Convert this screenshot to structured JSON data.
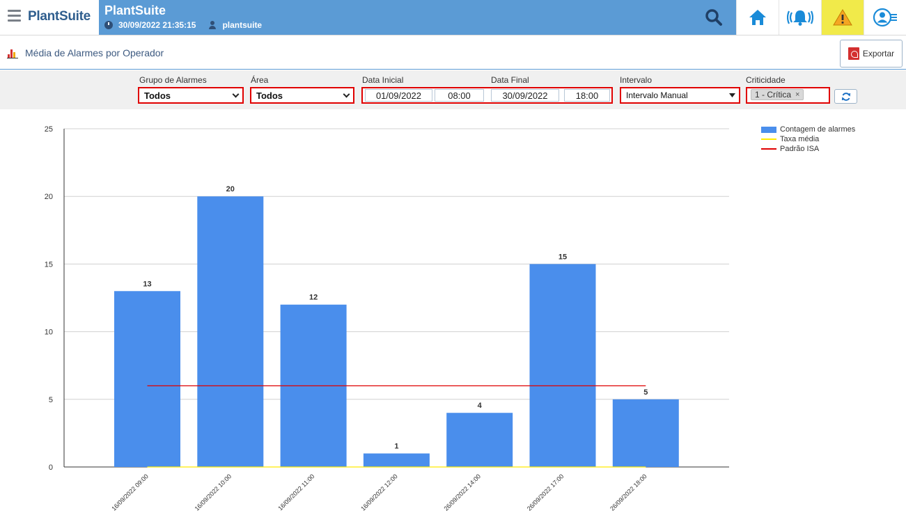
{
  "header": {
    "brand": "PlantSuite",
    "app_title": "PlantSuite",
    "datetime": "30/09/2022 21:35:15",
    "user": "plantsuite"
  },
  "page": {
    "title": "Média de Alarmes por Operador",
    "export_label": "Exportar"
  },
  "filters": {
    "group_label": "Grupo de Alarmes",
    "group_value": "Todos",
    "area_label": "Área",
    "area_value": "Todos",
    "start_label": "Data Inicial",
    "start_date": "01/09/2022",
    "start_time": "08:00",
    "end_label": "Data Final",
    "end_date": "30/09/2022",
    "end_time": "18:00",
    "interval_label": "Intervalo",
    "interval_value": "Intervalo Manual",
    "criticality_label": "Criticidade",
    "criticality_chip": "1 - Crítica",
    "chip_remove": "×"
  },
  "chart_data": {
    "type": "bar",
    "categories": [
      "16/09/2022 09:00",
      "16/09/2022 10:00",
      "16/09/2022 11:00",
      "16/09/2022 12:00",
      "26/09/2022 14:00",
      "26/09/2022 17:00",
      "26/09/2022 18:00"
    ],
    "series": [
      {
        "name": "Contagem de alarmes",
        "type": "bar",
        "color": "#4a8eec",
        "values": [
          13,
          20,
          12,
          1,
          4,
          15,
          5
        ]
      },
      {
        "name": "Taxa média",
        "type": "line",
        "color": "#ffeb00",
        "values": [
          0,
          0,
          0,
          0,
          0,
          0,
          0
        ]
      },
      {
        "name": "Padrão ISA",
        "type": "line",
        "color": "#e00000",
        "values": [
          6,
          6,
          6,
          6,
          6,
          6,
          6
        ]
      }
    ],
    "ylim": [
      0,
      25
    ],
    "yticks": [
      0,
      5,
      10,
      15,
      20,
      25
    ],
    "grid": true,
    "legend": "top-right"
  }
}
